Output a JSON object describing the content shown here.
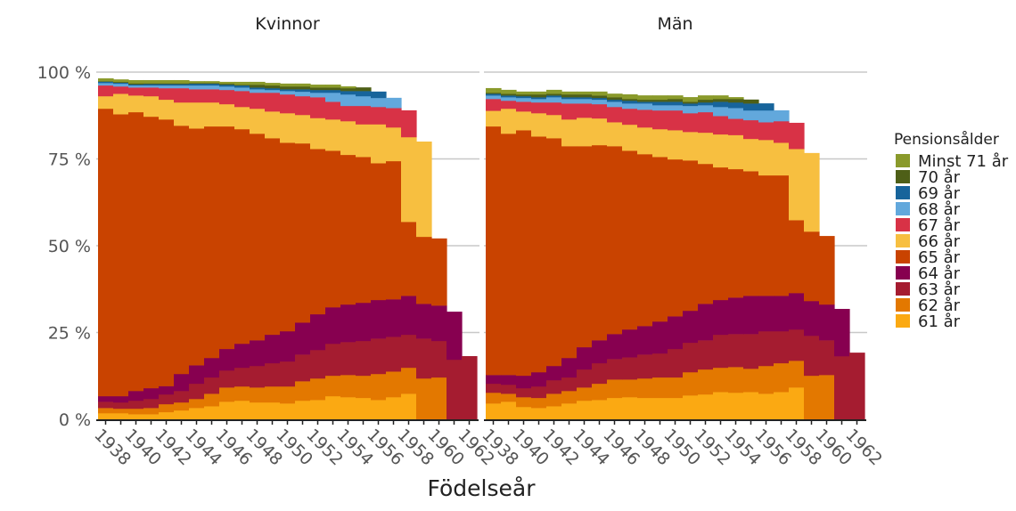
{
  "chart_data": {
    "type": "bar",
    "subtype": "stacked-step-area",
    "xlabel": "Födelseår",
    "ylabel": "",
    "ylim": [
      0,
      100
    ],
    "y_ticks": [
      "0 %",
      "25 %",
      "50 %",
      "75 %",
      "100 %"
    ],
    "y_tick_values": [
      0,
      25,
      50,
      75,
      100
    ],
    "grid": true,
    "legend_title": "Pensionsålder",
    "legend_placement": "right",
    "x": [
      1938,
      1939,
      1940,
      1941,
      1942,
      1943,
      1944,
      1945,
      1946,
      1947,
      1948,
      1949,
      1950,
      1951,
      1952,
      1953,
      1954,
      1955,
      1956,
      1957,
      1958,
      1959,
      1960,
      1961,
      1962
    ],
    "x_tick_labels": [
      "1938",
      "1940",
      "1942",
      "1944",
      "1946",
      "1948",
      "1950",
      "1952",
      "1954",
      "1956",
      "1958",
      "1960",
      "1962"
    ],
    "series_names": [
      "61 år",
      "62 år",
      "63 år",
      "64 år",
      "65 år",
      "66 år",
      "67 år",
      "68 år",
      "69 år",
      "70 år",
      "Minst 71 år"
    ],
    "legend_order": [
      "Minst 71 år",
      "70 år",
      "69 år",
      "68 år",
      "67 år",
      "66 år",
      "65 år",
      "64 år",
      "63 år",
      "62 år",
      "61 år"
    ],
    "colors": [
      "#fba912",
      "#e37800",
      "#a51c30",
      "#870050",
      "#c94300",
      "#f7bf40",
      "#d83246",
      "#62a8dc",
      "#17649b",
      "#4e5f17",
      "#8a9a2b"
    ],
    "panels": [
      {
        "title": "Kvinnor",
        "values": [
          [
            1.8,
            1.5,
            1.8,
            1.6,
            82.8,
            3.6,
            3.1,
            0.7,
            0.4,
            0.1,
            0.8
          ],
          [
            1.8,
            1.3,
            1.8,
            1.8,
            81.2,
            5.9,
            2.1,
            0.8,
            0.3,
            0.2,
            0.7
          ],
          [
            1.5,
            1.6,
            2.3,
            2.8,
            80.3,
            4.8,
            2.3,
            0.6,
            0.3,
            0.3,
            0.9
          ],
          [
            1.5,
            1.8,
            2.6,
            3.1,
            78.2,
            5.9,
            2.5,
            0.6,
            0.4,
            0.2,
            0.9
          ],
          [
            2.1,
            2.3,
            2.8,
            2.4,
            76.8,
            5.7,
            3.3,
            0.8,
            0.4,
            0.2,
            0.9
          ],
          [
            2.6,
            2.3,
            3.3,
            4.9,
            71.5,
            6.7,
            4.1,
            0.8,
            0.4,
            0.2,
            0.9
          ],
          [
            3.3,
            2.6,
            4.4,
            5.3,
            68.2,
            7.5,
            3.8,
            1.1,
            0.5,
            0.2,
            0.5
          ],
          [
            3.8,
            3.6,
            4.7,
            5.6,
            66.7,
            6.9,
            3.8,
            1.1,
            0.5,
            0.2,
            0.5
          ],
          [
            5.1,
            4.1,
            4.9,
            6.2,
            64.1,
            6.4,
            4.1,
            1.0,
            0.5,
            0.3,
            0.5
          ],
          [
            5.4,
            4.1,
            5.4,
            6.9,
            61.8,
            6.4,
            4.6,
            1.0,
            0.6,
            0.2,
            0.8
          ],
          [
            4.9,
            4.3,
            6.2,
            7.4,
            59.5,
            7.2,
            4.6,
            1.0,
            0.5,
            0.8,
            0.8
          ],
          [
            4.9,
            4.6,
            6.7,
            8.2,
            56.6,
            7.7,
            5.4,
            0.8,
            0.5,
            0.8,
            0.7
          ],
          [
            4.6,
            4.9,
            7.2,
            8.7,
            54.3,
            8.5,
            5.4,
            1.0,
            0.5,
            0.8,
            0.8
          ],
          [
            5.4,
            5.6,
            7.7,
            9.2,
            51.6,
            8.2,
            5.4,
            1.3,
            0.7,
            0.8,
            0.8
          ],
          [
            5.6,
            6.2,
            8.2,
            10.3,
            47.6,
            8.9,
            6.0,
            1.3,
            0.8,
            0.7,
            0.8
          ],
          [
            6.7,
            5.9,
            9.2,
            10.5,
            45.1,
            9.0,
            5.1,
            2.6,
            0.8,
            0.7,
            0.8
          ],
          [
            6.4,
            6.4,
            9.5,
            10.8,
            43.1,
            9.7,
            4.4,
            3.3,
            1.0,
            0.8,
            0.5
          ],
          [
            6.2,
            6.4,
            10.0,
            11.0,
            42.0,
            9.4,
            5.3,
            2.8,
            1.5,
            1.0,
            0
          ],
          [
            5.6,
            7.5,
            10.2,
            11.1,
            39.4,
            11.2,
            5.0,
            2.6,
            1.8,
            0,
            0
          ],
          [
            6.4,
            7.4,
            10.0,
            10.8,
            39.8,
            9.7,
            5.6,
            2.9,
            0,
            0,
            0
          ],
          [
            7.4,
            7.5,
            9.5,
            11.2,
            21.3,
            24.4,
            7.7,
            0,
            0,
            0,
            0
          ],
          [
            0,
            11.8,
            11.5,
            10.0,
            19.3,
            27.4,
            0,
            0,
            0,
            0,
            0
          ],
          [
            0,
            12.1,
            10.5,
            10.2,
            19.3,
            0,
            0,
            0,
            0,
            0,
            0
          ],
          [
            0,
            0,
            17.2,
            13.8,
            0,
            0,
            0,
            0,
            0,
            0,
            0
          ],
          [
            0,
            0,
            18.2,
            0,
            0,
            0,
            0,
            0,
            0,
            0,
            0
          ]
        ]
      },
      {
        "title": "Män",
        "values": [
          [
            4.6,
            3.1,
            2.6,
            2.5,
            71.6,
            4.5,
            3.4,
            1.0,
            0.5,
            0.3,
            1.3
          ],
          [
            5.1,
            2.3,
            2.6,
            2.8,
            69.5,
            7.2,
            2.3,
            1.0,
            0.5,
            0.5,
            1.1
          ],
          [
            3.6,
            2.8,
            2.6,
            3.6,
            70.7,
            5.4,
            2.8,
            1.1,
            0.5,
            0.5,
            0.8
          ],
          [
            3.3,
            2.9,
            3.3,
            4.1,
            67.9,
            6.7,
            3.1,
            1.0,
            0.5,
            0.8,
            0.8
          ],
          [
            3.8,
            3.6,
            3.9,
            4.1,
            65.6,
            6.7,
            3.6,
            1.5,
            0.5,
            0.5,
            1.1
          ],
          [
            4.6,
            3.6,
            3.9,
            5.6,
            61.0,
            7.7,
            4.6,
            1.3,
            0.5,
            0.8,
            0.8
          ],
          [
            5.4,
            3.8,
            5.2,
            6.4,
            57.9,
            8.2,
            4.1,
            1.3,
            0.5,
            0.8,
            0.8
          ],
          [
            5.6,
            4.7,
            5.9,
            6.6,
            56.2,
            7.7,
            4.1,
            1.3,
            0.5,
            0.7,
            1.1
          ],
          [
            6.2,
            5.3,
            5.9,
            7.2,
            54.1,
            6.9,
            4.4,
            1.5,
            0.6,
            0.7,
            1.0
          ],
          [
            6.4,
            5.1,
            6.4,
            8.0,
            51.5,
            7.5,
            4.6,
            1.5,
            0.8,
            0.5,
            1.3
          ],
          [
            6.2,
            5.6,
            6.9,
            8.2,
            49.5,
            7.7,
            5.1,
            1.8,
            0.5,
            0.6,
            1.2
          ],
          [
            6.2,
            5.9,
            6.9,
            9.2,
            47.4,
            8.0,
            5.4,
            1.5,
            1.0,
            0.6,
            1.2
          ],
          [
            6.2,
            5.9,
            8.2,
            9.4,
            45.2,
            8.4,
            5.7,
            1.5,
            1.0,
            0.8,
            1.0
          ],
          [
            6.9,
            6.7,
            8.5,
            9.2,
            43.3,
            8.2,
            5.4,
            2.1,
            0.7,
            0.5,
            1.3
          ],
          [
            7.2,
            7.2,
            8.4,
            10.5,
            40.3,
            9.0,
            5.9,
            2.0,
            0.8,
            0.8,
            1.2
          ],
          [
            7.9,
            7.0,
            9.5,
            10.0,
            38.2,
            9.5,
            5.3,
            2.6,
            1.5,
            0.8,
            1.0
          ],
          [
            7.7,
            7.4,
            9.5,
            10.5,
            37.0,
            9.8,
            4.7,
            3.1,
            1.6,
            1.0,
            0.5
          ],
          [
            7.9,
            6.7,
            10.0,
            11.0,
            35.9,
            9.3,
            5.4,
            2.8,
            2.0,
            1.1,
            0
          ],
          [
            7.4,
            8.0,
            10.0,
            10.2,
            34.7,
            10.2,
            5.1,
            3.4,
            2.0,
            0,
            0
          ],
          [
            7.9,
            8.3,
            9.2,
            10.2,
            34.7,
            9.4,
            6.2,
            3.1,
            0,
            0,
            0
          ],
          [
            9.2,
            7.7,
            9.0,
            10.5,
            21.0,
            20.5,
            7.5,
            0,
            0,
            0,
            0
          ],
          [
            0,
            12.6,
            11.5,
            10.0,
            20.0,
            22.6,
            0,
            0,
            0,
            0,
            0
          ],
          [
            0,
            12.8,
            10.0,
            10.3,
            19.7,
            0,
            0,
            0,
            0,
            0,
            0
          ],
          [
            0,
            0,
            18.2,
            13.6,
            0,
            0,
            0,
            0,
            0,
            0,
            0
          ],
          [
            0,
            0,
            19.2,
            0,
            0,
            0,
            0,
            0,
            0,
            0,
            0
          ]
        ]
      }
    ]
  }
}
